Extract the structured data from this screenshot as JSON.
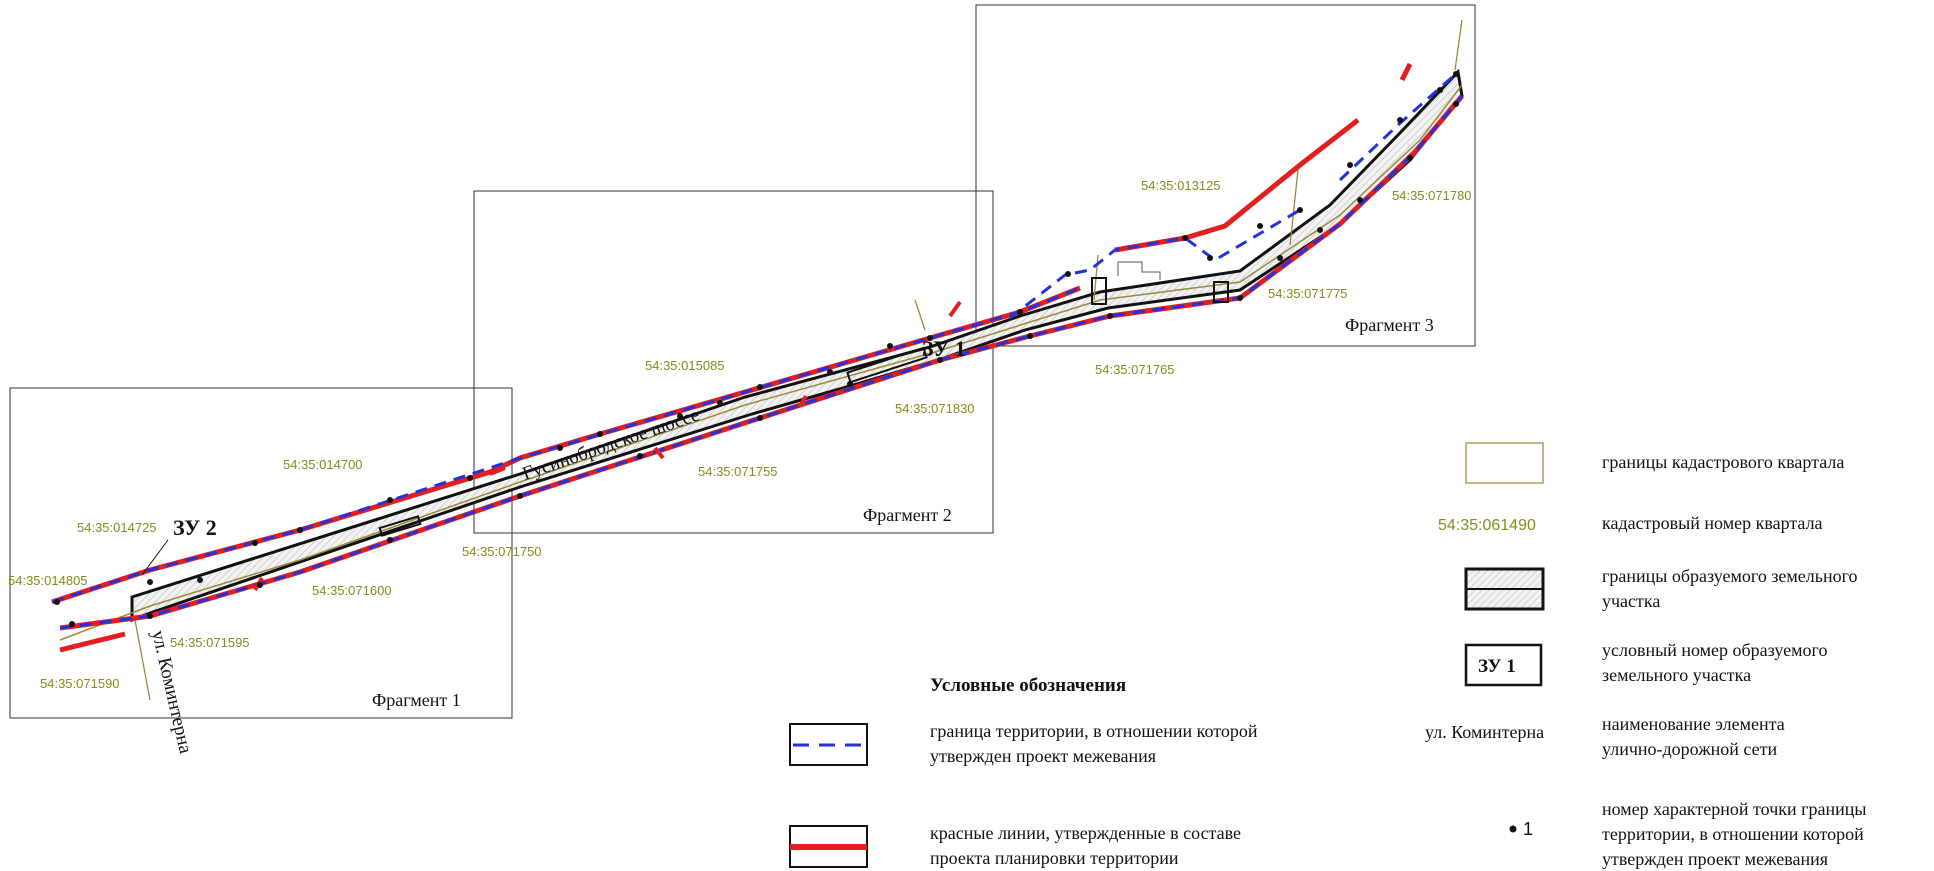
{
  "colors": {
    "red_line": "#e31e1e",
    "blue_dash": "#2233dd",
    "black": "#111111",
    "cadastral": "#9a8a3a",
    "cad_text": "#8a8a1e",
    "hatch": "#d9d9d9"
  },
  "fragments": {
    "f1": "Фрагмент 1",
    "f2": "Фрагмент 2",
    "f3": "Фрагмент 3"
  },
  "cadastral_numbers": {
    "c014700": "54:35:014700",
    "c014725": "54:35:014725",
    "c014805": "54:35:014805",
    "c071600": "54:35:071600",
    "c071595": "54:35:071595",
    "c071590": "54:35:071590",
    "c071750": "54:35:071750",
    "c015085": "54:35:015085",
    "c071755": "54:35:071755",
    "c071830": "54:35:071830",
    "c071765": "54:35:071765",
    "c013125": "54:35:013125",
    "c071780": "54:35:071780",
    "c071775": "54:35:071775"
  },
  "plots": {
    "zu1": "ЗУ 1",
    "zu2": "ЗУ 2"
  },
  "streets": {
    "gusinobrodskoe": "Гусинобродское шоссе",
    "kominterna": "ул. Коминтерна"
  },
  "legend": {
    "title": "Условные обозначения",
    "boundary_line1": "граница территории, в отношении которой",
    "boundary_line2": "утвержден проект межевания",
    "red_lines_line1": "красные линии, утвержденные в составе",
    "red_lines_line2": "проекта планировки территории",
    "cadastral_block": "границы кадастрового квартала",
    "cadastral_number_sample": "54:35:061490",
    "cadastral_number_desc": "кадастровый номер квартала",
    "plot_bounds_line1": "границы образуемого земельного",
    "plot_bounds_line2": "участка",
    "plot_number_sample": "ЗУ 1",
    "plot_number_line1": "условный номер образуемого",
    "plot_number_line2": "земельного участка",
    "street_sample": "ул. Коминтерна",
    "street_desc_line1": "наименование элемента",
    "street_desc_line2": "улично-дорожной сети",
    "point_sample": "1",
    "point_desc_line1": "номер характерной точки границы",
    "point_desc_line2": "территории, в отношении которой",
    "point_desc_line3": "утвержден проект межевания"
  }
}
